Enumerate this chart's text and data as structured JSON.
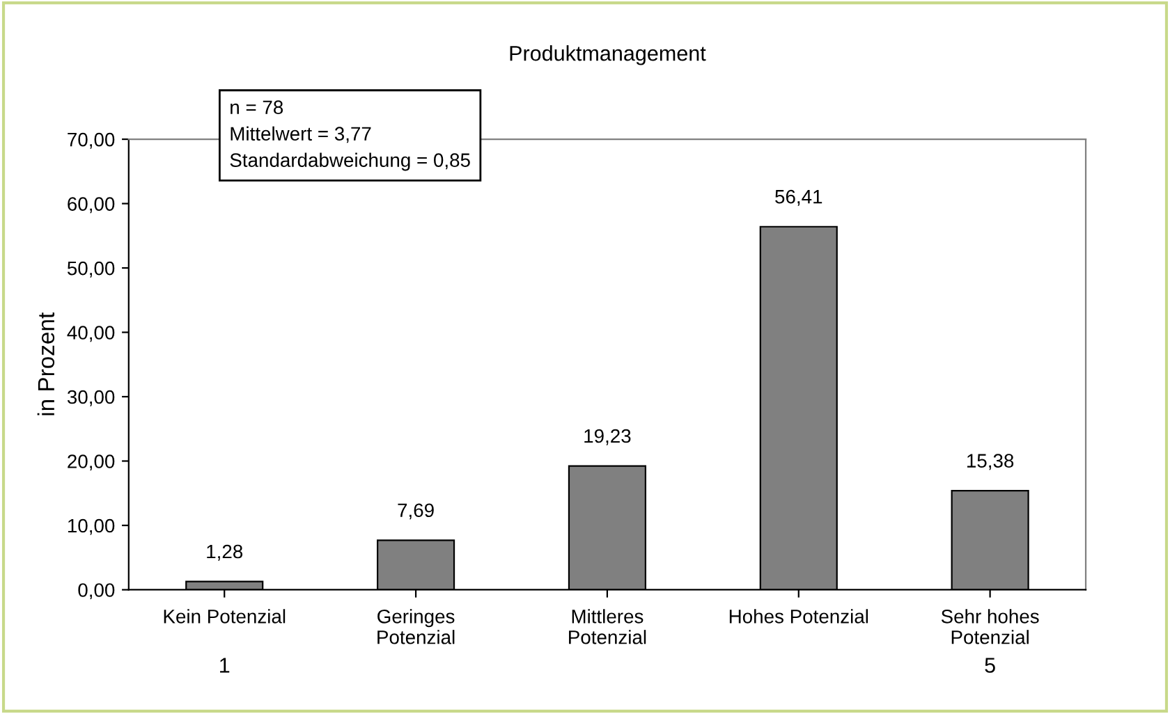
{
  "chart_data": {
    "type": "bar",
    "title": "Produktmanagement",
    "ylabel": "in Prozent",
    "categories": [
      "Kein Potenzial",
      "Geringes\nPotenzial",
      "Mittleres\nPotenzial",
      "Hohes Potenzial",
      "Sehr hohes\nPotenzial"
    ],
    "values": [
      1.28,
      7.69,
      19.23,
      56.41,
      15.38
    ],
    "color": "#808080",
    "value_labels": [
      "1,28",
      "7,69",
      "19,23",
      "56,41",
      "15,38"
    ],
    "ylim": [
      0,
      70
    ],
    "yticks": [
      {
        "value": 0,
        "label": "0,00"
      },
      {
        "value": 10,
        "label": "10,00"
      },
      {
        "value": 20,
        "label": "20,00"
      },
      {
        "value": 30,
        "label": "30,00"
      },
      {
        "value": 40,
        "label": "40,00"
      },
      {
        "value": 50,
        "label": "50,00"
      },
      {
        "value": 60,
        "label": "60,00"
      },
      {
        "value": 70,
        "label": "70,00"
      }
    ],
    "grid": false,
    "legend": false,
    "annotations": [
      "n = 78\nMittelwert = 3,77\nStandardabweichung = 0,85",
      "1",
      "5"
    ]
  }
}
